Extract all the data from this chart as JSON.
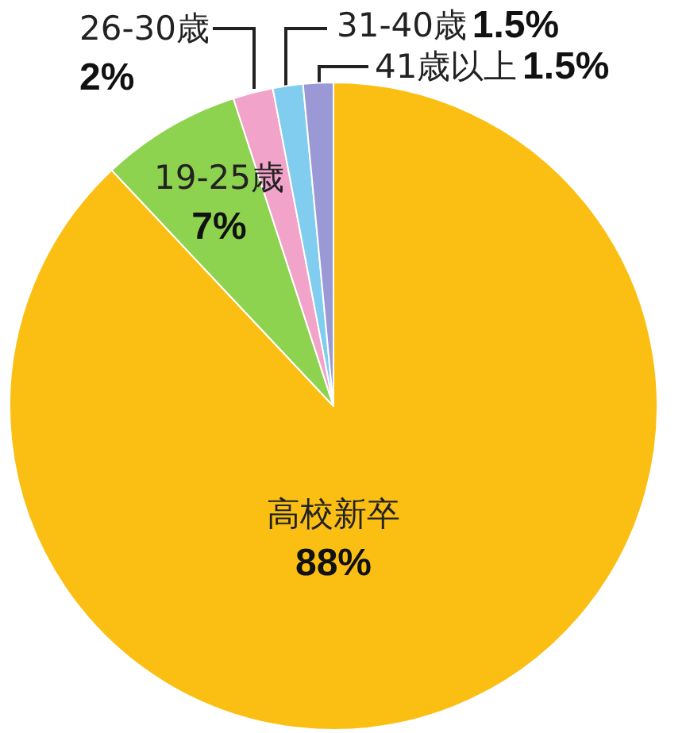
{
  "chart_data": {
    "type": "pie",
    "categories": [
      "高校新卒",
      "19-25歳",
      "26-30歳",
      "31-40歳",
      "41歳以上"
    ],
    "values": [
      88,
      7,
      2,
      1.5,
      1.5
    ],
    "colors": [
      "#fbbf14",
      "#8dd34f",
      "#f2a3c9",
      "#80cdef",
      "#9b98d6"
    ],
    "data_labels": true,
    "value_labels": [
      "88%",
      "7%",
      "2%",
      "1.5%",
      "1.5%"
    ]
  }
}
